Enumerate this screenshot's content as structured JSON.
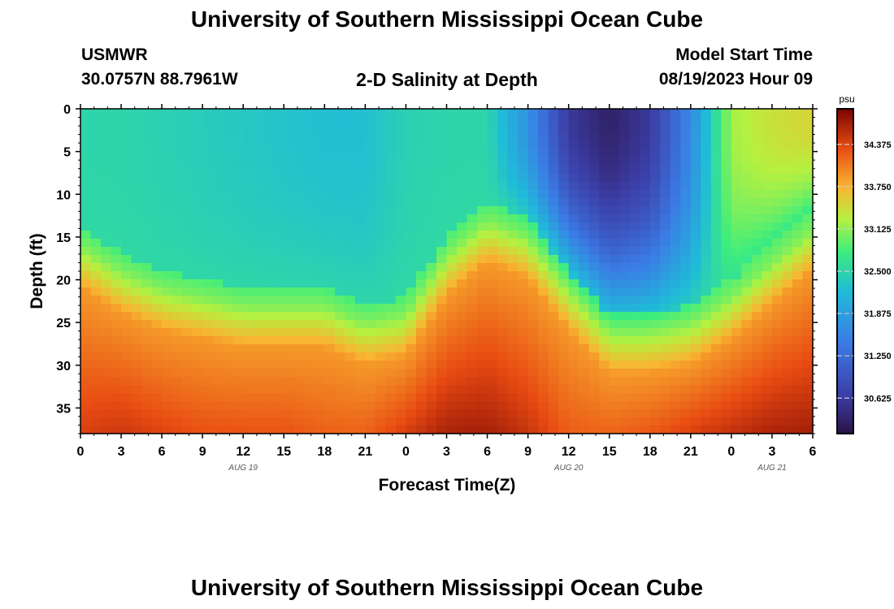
{
  "header": {
    "title": "University of Southern Mississippi Ocean Cube",
    "station": "USMWR",
    "coords": "30.0757N  88.7961W",
    "plot_title": "2-D Salinity at Depth",
    "model_label": "Model Start Time",
    "model_time": "08/19/2023 Hour 09"
  },
  "footer": {
    "title": "University of Southern Mississippi Ocean Cube"
  },
  "colors": {
    "low": "#2b1246",
    "mid": "#1fe0a8",
    "high": "#7a0403"
  },
  "chart_data": {
    "type": "heatmap",
    "title": "2-D Salinity at Depth",
    "xlabel": "Forecast Time(Z)",
    "ylabel": "Depth (ft)",
    "x_ticks": [
      "0",
      "3",
      "6",
      "9",
      "12",
      "15",
      "18",
      "21",
      "0",
      "3",
      "6",
      "9",
      "12",
      "15",
      "18",
      "21",
      "0",
      "3",
      "6"
    ],
    "x_range_hours": [
      0,
      54
    ],
    "date_labels": [
      {
        "label": "AUG 19",
        "hour": 12
      },
      {
        "label": "AUG 20",
        "hour": 36
      },
      {
        "label": "AUG 21",
        "hour": 51
      }
    ],
    "y_ticks": [
      0,
      5,
      10,
      15,
      20,
      25,
      30,
      35
    ],
    "y_range_ft": [
      0,
      38
    ],
    "colorbar": {
      "unit": "psu",
      "ticks": [
        "34.375",
        "33.750",
        "33.125",
        "32.500",
        "31.875",
        "31.250",
        "30.625"
      ],
      "range": [
        30.1,
        34.9
      ]
    },
    "columns_hours": [
      0,
      3,
      6,
      9,
      12,
      15,
      18,
      21,
      24,
      27,
      30,
      33,
      36,
      39,
      42,
      45,
      48,
      51,
      54
    ],
    "halocline_depth_ft": [
      16,
      19,
      21,
      22,
      23,
      23,
      23,
      25,
      24,
      17,
      13,
      15,
      21,
      26,
      26,
      25,
      22,
      18,
      14
    ],
    "surface_salinity_psu": [
      32.5,
      32.5,
      32.45,
      32.4,
      32.35,
      32.3,
      32.25,
      32.25,
      32.45,
      32.5,
      32.5,
      31.7,
      30.6,
      30.3,
      30.6,
      31.6,
      33.2,
      33.4,
      33.5
    ],
    "bottom_salinity_psu": [
      34.5,
      34.6,
      34.5,
      34.4,
      34.4,
      34.4,
      34.3,
      34.3,
      34.6,
      34.8,
      34.8,
      34.6,
      34.3,
      34.3,
      34.4,
      34.6,
      34.7,
      34.8,
      34.8
    ]
  }
}
